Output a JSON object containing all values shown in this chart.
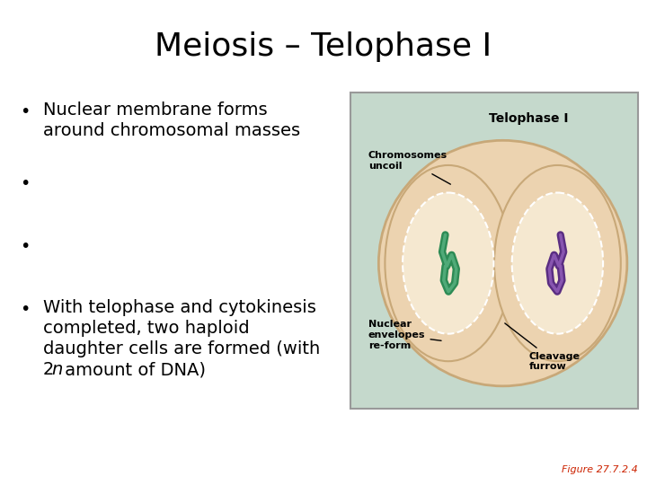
{
  "title": "Meiosis – Telophase I",
  "title_fontsize": 26,
  "background_color": "#ffffff",
  "image_bg_color": "#c5d9cc",
  "image_border_color": "#999999",
  "outer_cell_color": "#ecd3b0",
  "outer_cell_edge": "#c8a878",
  "inner_cell_color": "#f5e8d0",
  "chrom_green": "#2d8b55",
  "chrom_green_light": "#50aa78",
  "chrom_purple": "#5a2d82",
  "chrom_purple_light": "#8855b0",
  "label_fontsize": 8,
  "diagram_label_fontsize": 8,
  "caption_text": "Figure 27.7.2.4",
  "caption_color": "#cc2200",
  "caption_fontsize": 8,
  "bullet_fontsize": 14,
  "bullet1_text1": "Nuclear membrane forms",
  "bullet1_text2": "around chromosomal masses",
  "bullet4_line1": "With telophase and cytokinesis",
  "bullet4_line2": "completed, two haploid",
  "bullet4_line3": "daughter cells are formed (with",
  "bullet4_line4_pre": "2",
  "bullet4_line4_italic": "n",
  "bullet4_line4_post": " amount of DNA)"
}
